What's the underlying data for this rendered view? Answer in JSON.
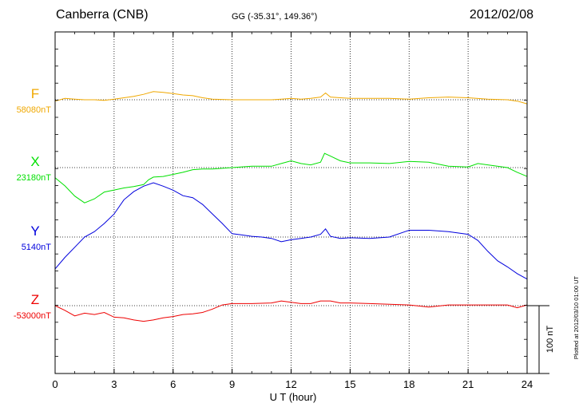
{
  "header": {
    "station": "Canberra (CNB)",
    "coords": "GG (-35.31°, 149.36°)",
    "date": "2012/02/08"
  },
  "plotted_note": "Plotted at 2012/03/10 01:00 UT",
  "scale_bar_label": "100 nT",
  "chart_data": {
    "type": "line",
    "xlabel": "U T (hour)",
    "xlim": [
      0,
      24
    ],
    "x_ticks": [
      0,
      3,
      6,
      9,
      12,
      15,
      18,
      21,
      24
    ],
    "y_units": "nT",
    "series": [
      {
        "name": "F",
        "baseline_label": "58080nT",
        "baseline": 58080,
        "color": "#f0a800",
        "x": [
          0,
          0.5,
          1,
          1.5,
          2,
          2.5,
          3,
          3.5,
          4,
          4.5,
          5,
          5.5,
          6,
          6.5,
          7,
          7.5,
          8,
          9,
          10,
          11,
          11.5,
          12,
          12.5,
          13,
          13.5,
          13.75,
          14,
          14.5,
          15,
          16,
          17,
          18,
          19,
          20,
          21,
          22,
          23,
          23.5,
          24
        ],
        "y": [
          58078,
          58082,
          58081,
          58080,
          58080,
          58079,
          58081,
          58083,
          58085,
          58088,
          58092,
          58091,
          58089,
          58087,
          58086,
          58083,
          58081,
          58080,
          58080,
          58080,
          58081,
          58082,
          58081,
          58082,
          58084,
          58090,
          58084,
          58083,
          58082,
          58082,
          58082,
          58081,
          58083,
          58084,
          58083,
          58081,
          58080,
          58078,
          58074
        ]
      },
      {
        "name": "X",
        "baseline_label": "23180nT",
        "baseline": 23180,
        "color": "#00e000",
        "x": [
          0,
          0.5,
          1,
          1.5,
          2,
          2.5,
          3,
          3.5,
          4,
          4.5,
          4.75,
          5,
          5.5,
          6,
          6.5,
          7,
          7.5,
          8,
          9,
          10,
          11,
          11.5,
          12,
          12.5,
          13,
          13.5,
          13.7,
          14,
          14.5,
          15,
          16,
          17,
          18,
          19,
          20,
          21,
          21.5,
          22,
          23,
          23.5,
          24
        ],
        "y": [
          23165,
          23153,
          23138,
          23128,
          23134,
          23144,
          23147,
          23150,
          23152,
          23155,
          23162,
          23166,
          23167,
          23170,
          23173,
          23177,
          23178,
          23178,
          23180,
          23182,
          23182,
          23186,
          23190,
          23186,
          23184,
          23188,
          23201,
          23197,
          23190,
          23187,
          23187,
          23186,
          23189,
          23188,
          23182,
          23181,
          23186,
          23184,
          23180,
          23173,
          23167
        ]
      },
      {
        "name": "Y",
        "baseline_label": "5140nT",
        "baseline": 5140,
        "color": "#0000dd",
        "x": [
          0,
          0.5,
          1,
          1.5,
          2,
          2.5,
          3,
          3.5,
          4,
          4.5,
          5,
          5.5,
          6,
          6.5,
          7,
          7.5,
          8,
          8.5,
          9,
          9.5,
          10,
          10.5,
          11,
          11.5,
          12,
          12.5,
          13,
          13.5,
          13.75,
          14,
          14.5,
          15,
          16,
          17,
          18,
          19,
          20,
          21,
          21.5,
          22,
          22.5,
          23,
          23.5,
          24
        ],
        "y": [
          5093,
          5110,
          5125,
          5140,
          5148,
          5160,
          5174,
          5195,
          5207,
          5215,
          5220,
          5215,
          5209,
          5201,
          5198,
          5188,
          5174,
          5160,
          5145,
          5143,
          5141,
          5140,
          5138,
          5133,
          5136,
          5138,
          5140,
          5144,
          5152,
          5141,
          5138,
          5139,
          5138,
          5140,
          5150,
          5150,
          5148,
          5144,
          5135,
          5119,
          5105,
          5096,
          5086,
          5078
        ]
      },
      {
        "name": "Z",
        "baseline_label": "-53000nT",
        "baseline": -53000,
        "color": "#ee0000",
        "x": [
          0,
          0.5,
          1,
          1.5,
          2,
          2.5,
          3,
          3.5,
          4,
          4.5,
          5,
          5.5,
          6,
          6.5,
          7,
          7.5,
          8,
          8.5,
          9,
          10,
          11,
          11.5,
          12,
          12.5,
          13,
          13.5,
          14,
          14.5,
          15,
          16,
          17,
          18,
          19,
          20,
          21,
          22,
          23,
          23.5,
          24
        ],
        "y": [
          -53000,
          -53007,
          -53015,
          -53011,
          -53013,
          -53010,
          -53017,
          -53018,
          -53021,
          -53023,
          -53021,
          -53018,
          -53016,
          -53013,
          -53012,
          -53010,
          -53005,
          -52999,
          -52997,
          -52997,
          -52996,
          -52993,
          -52995,
          -52997,
          -52997,
          -52993,
          -52993,
          -52996,
          -52996,
          -52997,
          -52998,
          -52999,
          -53002,
          -52999,
          -52999,
          -52999,
          -52999,
          -53003,
          -52999
        ]
      }
    ]
  }
}
